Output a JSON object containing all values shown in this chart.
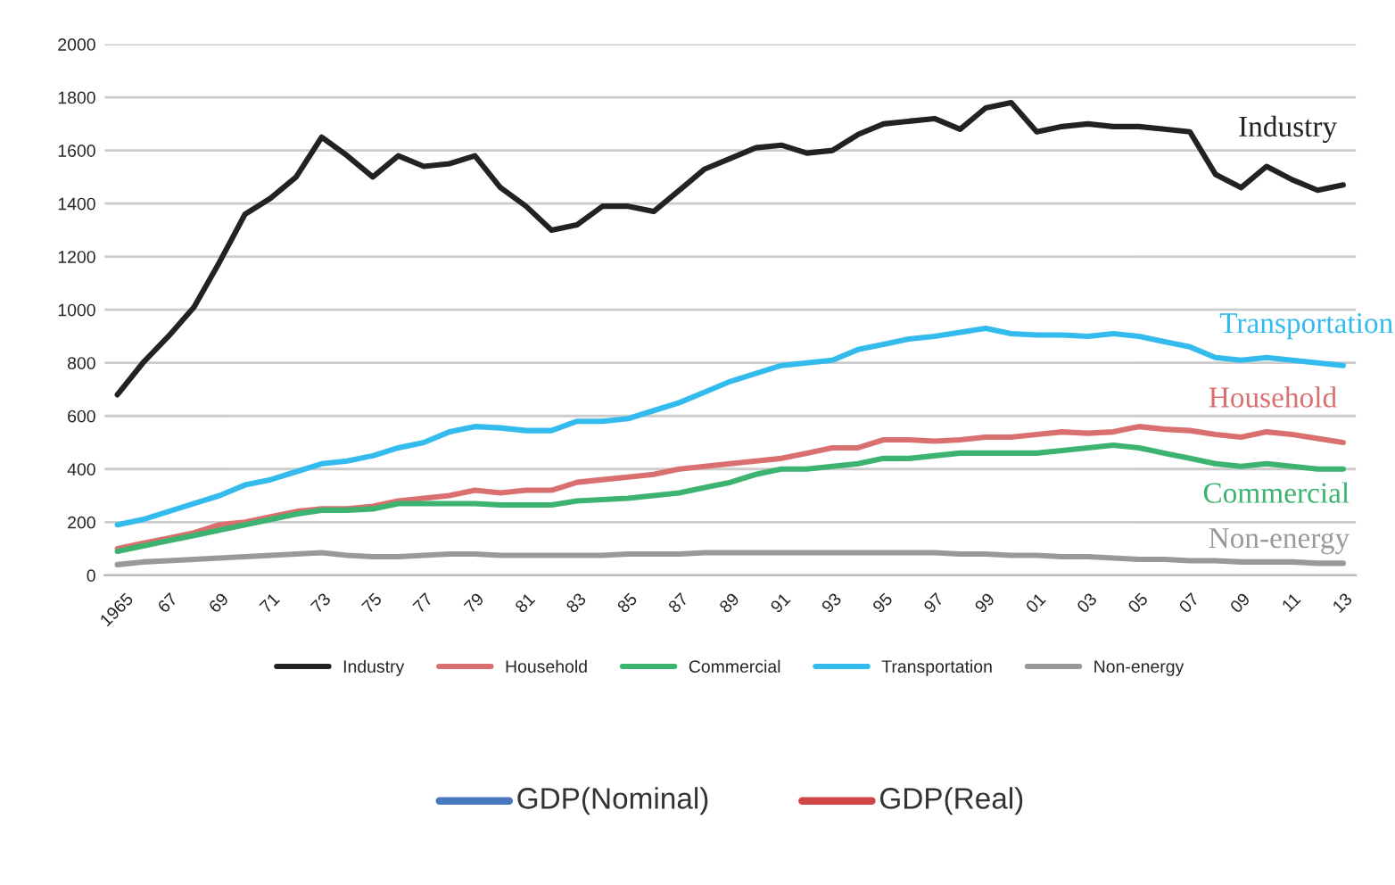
{
  "chart_data": {
    "type": "line",
    "categories": [
      "1965",
      null,
      "67",
      null,
      "69",
      null,
      "71",
      null,
      "73",
      null,
      "75",
      null,
      "77",
      null,
      "79",
      null,
      "81",
      null,
      "83",
      null,
      "85",
      null,
      "87",
      null,
      "89",
      null,
      "91",
      null,
      "93",
      null,
      "95",
      null,
      "97",
      null,
      "99",
      null,
      "01",
      null,
      "03",
      null,
      "05",
      null,
      "07",
      null,
      "09",
      null,
      "11",
      null,
      "13"
    ],
    "series": [
      {
        "name": "Industry",
        "color": "#222222",
        "values": [
          680,
          800,
          900,
          1010,
          1180,
          1360,
          1420,
          1500,
          1650,
          1580,
          1500,
          1580,
          1540,
          1550,
          1580,
          1460,
          1390,
          1300,
          1320,
          1390,
          1390,
          1370,
          1450,
          1530,
          1570,
          1610,
          1620,
          1590,
          1600,
          1660,
          1700,
          1710,
          1720,
          1680,
          1760,
          1780,
          1670,
          1690,
          1700,
          1690,
          1690,
          1680,
          1670,
          1510,
          1460,
          1540,
          1490,
          1450,
          1470
        ]
      },
      {
        "name": "Household",
        "color": "#d9706f",
        "values": [
          100,
          120,
          140,
          160,
          190,
          200,
          220,
          240,
          250,
          250,
          260,
          280,
          290,
          300,
          320,
          310,
          320,
          320,
          350,
          360,
          370,
          380,
          400,
          410,
          420,
          430,
          440,
          460,
          480,
          480,
          510,
          510,
          505,
          510,
          520,
          520,
          530,
          540,
          535,
          540,
          560,
          550,
          545,
          530,
          520,
          540,
          530,
          515,
          500
        ]
      },
      {
        "name": "Commercial",
        "color": "#3cb371",
        "values": [
          90,
          110,
          130,
          150,
          170,
          190,
          210,
          230,
          245,
          245,
          250,
          270,
          270,
          270,
          270,
          265,
          265,
          265,
          280,
          285,
          290,
          300,
          310,
          330,
          350,
          380,
          400,
          400,
          410,
          420,
          440,
          440,
          450,
          460,
          460,
          460,
          460,
          470,
          480,
          490,
          480,
          460,
          440,
          420,
          410,
          420,
          410,
          400,
          400
        ]
      },
      {
        "name": "Transportation",
        "color": "#33bbee",
        "values": [
          190,
          210,
          240,
          270,
          300,
          340,
          360,
          390,
          420,
          430,
          450,
          480,
          500,
          540,
          560,
          555,
          545,
          545,
          580,
          580,
          590,
          620,
          650,
          690,
          730,
          760,
          790,
          800,
          810,
          850,
          870,
          890,
          900,
          915,
          930,
          910,
          905,
          905,
          900,
          910,
          900,
          880,
          860,
          820,
          810,
          820,
          810,
          800,
          790
        ]
      },
      {
        "name": "Non-energy",
        "color": "#999999",
        "values": [
          40,
          50,
          55,
          60,
          65,
          70,
          75,
          80,
          85,
          75,
          70,
          70,
          75,
          80,
          80,
          75,
          75,
          75,
          75,
          75,
          80,
          80,
          80,
          85,
          85,
          85,
          85,
          85,
          85,
          85,
          85,
          85,
          85,
          80,
          80,
          75,
          75,
          70,
          70,
          65,
          60,
          60,
          55,
          55,
          50,
          50,
          50,
          45,
          45
        ]
      }
    ],
    "ylim": [
      0,
      2000
    ],
    "yticks": [
      0,
      200,
      400,
      600,
      800,
      1000,
      1200,
      1400,
      1600,
      1800,
      2000
    ],
    "grid": "y",
    "legend": "bottom",
    "line_style": "solid",
    "marker": "none",
    "annotations": [
      "Industry",
      "Household",
      "Commercial",
      "Transportation",
      "Non-energy",
      "GDP(Nominal)",
      "GDP(Real)"
    ]
  }
}
